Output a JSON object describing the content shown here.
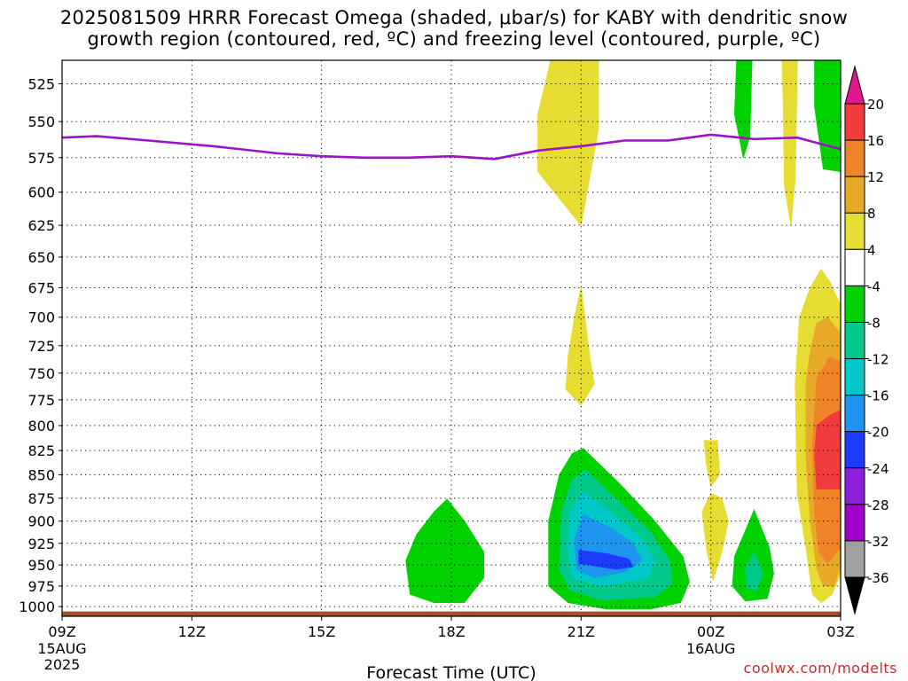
{
  "title": {
    "line1": "2025081509 HRRR Forecast Omega (shaded, μbar/s) for KABY with dendritic snow",
    "line2": "growth region (contoured, red, ºC) and freezing level (contoured, purple, ºC)"
  },
  "credit": "coolwx.com/modelts",
  "chart_data": {
    "type": "heatmap",
    "title": "2025081509 HRRR Forecast Omega (shaded, μbar/s) for KABY with dendritic snow growth region (contoured, red, ºC) and freezing level (contoured, purple, ºC)",
    "xlabel": "Forecast Time (UTC)",
    "ylabel": "",
    "x_ticks": [
      {
        "hour": 0,
        "label": "09Z",
        "sub1": "15AUG",
        "sub2": "2025"
      },
      {
        "hour": 3,
        "label": "12Z"
      },
      {
        "hour": 6,
        "label": "15Z"
      },
      {
        "hour": 9,
        "label": "18Z"
      },
      {
        "hour": 12,
        "label": "21Z"
      },
      {
        "hour": 15,
        "label": "00Z",
        "sub1": "16AUG"
      },
      {
        "hour": 18,
        "label": "03Z"
      }
    ],
    "xlim_hours": [
      0,
      18
    ],
    "y_scale": "log-pressure, inverted",
    "ylim_hPa": [
      1012,
      510
    ],
    "y_ticks_hPa": [
      525,
      550,
      575,
      600,
      625,
      650,
      675,
      700,
      725,
      750,
      775,
      800,
      825,
      850,
      875,
      900,
      925,
      950,
      975,
      1000
    ],
    "grid": "dotted",
    "colorbar": {
      "ticks": [
        20,
        16,
        12,
        8,
        4,
        -4,
        -8,
        -12,
        -16,
        -20,
        -24,
        -28,
        -32,
        -36
      ],
      "bins": [
        {
          "range": "above 20",
          "color": "#e0188c"
        },
        {
          "range": "16 to 20",
          "color": "#f03c3c"
        },
        {
          "range": "12 to 16",
          "color": "#ef8428"
        },
        {
          "range": "8 to 12",
          "color": "#e6aa28"
        },
        {
          "range": "4 to 8",
          "color": "#e6dc32"
        },
        {
          "range": "-4 to 4",
          "color": "#ffffff"
        },
        {
          "range": "-8 to -4",
          "color": "#00d200"
        },
        {
          "range": "-12 to -8",
          "color": "#00c98a"
        },
        {
          "range": "-16 to -12",
          "color": "#00c8c8"
        },
        {
          "range": "-20 to -16",
          "color": "#1e96f0"
        },
        {
          "range": "-24 to -20",
          "color": "#1e3cff"
        },
        {
          "range": "-28 to -24",
          "color": "#8c1edc"
        },
        {
          "range": "-32 to -28",
          "color": "#a000c8"
        },
        {
          "range": "-36 to -32",
          "color": "#a0a0a0"
        },
        {
          "range": "below -36",
          "color": "#000000"
        }
      ]
    },
    "freezing_level": {
      "color": "#9b12c8",
      "points": [
        [
          0,
          561
        ],
        [
          0.8,
          560
        ],
        [
          2,
          563
        ],
        [
          3.5,
          567
        ],
        [
          5,
          572
        ],
        [
          6,
          574
        ],
        [
          7,
          575
        ],
        [
          8,
          575
        ],
        [
          9,
          574
        ],
        [
          10,
          576
        ],
        [
          11,
          570
        ],
        [
          12,
          567
        ],
        [
          13,
          563
        ],
        [
          14,
          563
        ],
        [
          15,
          559
        ],
        [
          16,
          562
        ],
        [
          17,
          561
        ],
        [
          18,
          569
        ]
      ]
    },
    "ground": {
      "color": "#a0522d",
      "top_hPa": 1006
    },
    "omega_regions": [
      {
        "level": 4,
        "color": "#e6dc32",
        "points": [
          [
            11.3,
            510
          ],
          [
            12.4,
            510
          ],
          [
            12.4,
            555
          ],
          [
            12.0,
            625
          ],
          [
            11.0,
            585
          ],
          [
            11.0,
            545
          ]
        ]
      },
      {
        "level": -4,
        "color": "#00d200",
        "points": [
          [
            15.6,
            510
          ],
          [
            15.95,
            510
          ],
          [
            15.9,
            560
          ],
          [
            15.75,
            575
          ],
          [
            15.55,
            545
          ]
        ]
      },
      {
        "level": 4,
        "color": "#e6dc32",
        "points": [
          [
            16.65,
            510
          ],
          [
            17.0,
            510
          ],
          [
            16.95,
            590
          ],
          [
            16.85,
            625
          ],
          [
            16.7,
            595
          ],
          [
            16.68,
            545
          ]
        ]
      },
      {
        "level": -4,
        "color": "#00d200",
        "points": [
          [
            17.4,
            510
          ],
          [
            18.0,
            510
          ],
          [
            18.0,
            585
          ],
          [
            17.6,
            583
          ],
          [
            17.4,
            540
          ]
        ]
      },
      {
        "level": 4,
        "color": "#e6dc32",
        "points": [
          [
            12.0,
            675
          ],
          [
            12.2,
            735
          ],
          [
            12.3,
            760
          ],
          [
            12.0,
            780
          ],
          [
            11.65,
            765
          ],
          [
            11.7,
            735
          ],
          [
            11.85,
            700
          ]
        ]
      },
      {
        "level": 4,
        "color": "#e6dc32",
        "points": [
          [
            17.55,
            660
          ],
          [
            17.75,
            670
          ],
          [
            18.0,
            690
          ],
          [
            18.0,
            960
          ],
          [
            17.8,
            985
          ],
          [
            17.55,
            995
          ],
          [
            17.35,
            985
          ],
          [
            17.2,
            930
          ],
          [
            17.0,
            870
          ],
          [
            16.95,
            760
          ],
          [
            17.05,
            700
          ],
          [
            17.3,
            675
          ]
        ]
      },
      {
        "level": 8,
        "color": "#e6aa28",
        "points": [
          [
            17.7,
            700
          ],
          [
            18.0,
            715
          ],
          [
            18.0,
            950
          ],
          [
            17.85,
            975
          ],
          [
            17.6,
            975
          ],
          [
            17.45,
            955
          ],
          [
            17.3,
            900
          ],
          [
            17.2,
            830
          ],
          [
            17.2,
            760
          ],
          [
            17.3,
            730
          ],
          [
            17.45,
            705
          ]
        ]
      },
      {
        "level": 12,
        "color": "#ef8428",
        "points": [
          [
            17.75,
            735
          ],
          [
            18.0,
            740
          ],
          [
            18.0,
            930
          ],
          [
            17.7,
            948
          ],
          [
            17.5,
            935
          ],
          [
            17.4,
            890
          ],
          [
            17.35,
            820
          ],
          [
            17.45,
            755
          ]
        ]
      },
      {
        "level": 16,
        "color": "#f03c3c",
        "points": [
          [
            17.75,
            790
          ],
          [
            18.0,
            785
          ],
          [
            18.0,
            865
          ],
          [
            17.45,
            865
          ],
          [
            17.4,
            830
          ],
          [
            17.45,
            800
          ]
        ]
      },
      {
        "level": 4,
        "color": "#e6dc32",
        "points": [
          [
            14.85,
            815
          ],
          [
            15.15,
            815
          ],
          [
            15.2,
            850
          ],
          [
            15.0,
            862
          ],
          [
            14.9,
            840
          ]
        ]
      },
      {
        "level": 4,
        "color": "#e6dc32",
        "points": [
          [
            15.0,
            870
          ],
          [
            15.25,
            875
          ],
          [
            15.4,
            900
          ],
          [
            15.25,
            935
          ],
          [
            15.05,
            968
          ],
          [
            14.9,
            930
          ],
          [
            14.8,
            890
          ]
        ]
      },
      {
        "level": -4,
        "color": "#00d200",
        "points": [
          [
            8.9,
            876
          ],
          [
            9.3,
            900
          ],
          [
            9.75,
            935
          ],
          [
            9.75,
            965
          ],
          [
            9.3,
            995
          ],
          [
            8.6,
            995
          ],
          [
            8.05,
            985
          ],
          [
            7.95,
            945
          ],
          [
            8.2,
            915
          ],
          [
            8.6,
            890
          ]
        ]
      },
      {
        "level": -4,
        "color": "#00d200",
        "points": [
          [
            12.05,
            823
          ],
          [
            12.9,
            860
          ],
          [
            13.7,
            900
          ],
          [
            14.35,
            940
          ],
          [
            14.5,
            970
          ],
          [
            14.3,
            995
          ],
          [
            13.6,
            1003
          ],
          [
            12.6,
            1003
          ],
          [
            11.7,
            995
          ],
          [
            11.25,
            975
          ],
          [
            11.25,
            900
          ],
          [
            11.5,
            850
          ],
          [
            11.8,
            828
          ]
        ]
      },
      {
        "level": -8,
        "color": "#00c98a",
        "points": [
          [
            12.1,
            845
          ],
          [
            12.9,
            880
          ],
          [
            13.6,
            912
          ],
          [
            14.05,
            945
          ],
          [
            14.1,
            972
          ],
          [
            13.7,
            988
          ],
          [
            12.5,
            992
          ],
          [
            11.75,
            980
          ],
          [
            11.5,
            955
          ],
          [
            11.55,
            890
          ],
          [
            11.8,
            855
          ]
        ]
      },
      {
        "level": -12,
        "color": "#00c8c8",
        "points": [
          [
            12.05,
            868
          ],
          [
            12.8,
            895
          ],
          [
            13.4,
            920
          ],
          [
            13.7,
            945
          ],
          [
            13.55,
            965
          ],
          [
            12.5,
            975
          ],
          [
            11.8,
            965
          ],
          [
            11.7,
            930
          ],
          [
            11.75,
            890
          ]
        ]
      },
      {
        "level": -16,
        "color": "#1e96f0",
        "points": [
          [
            12.05,
            893
          ],
          [
            12.7,
            908
          ],
          [
            13.2,
            925
          ],
          [
            13.4,
            945
          ],
          [
            13.0,
            958
          ],
          [
            12.3,
            965
          ],
          [
            11.9,
            955
          ],
          [
            11.85,
            920
          ]
        ]
      },
      {
        "level": -20,
        "color": "#1e3cff",
        "points": [
          [
            11.95,
            933
          ],
          [
            12.6,
            937
          ],
          [
            13.1,
            943
          ],
          [
            13.2,
            952
          ],
          [
            12.8,
            955
          ],
          [
            11.95,
            948
          ]
        ]
      },
      {
        "level": -4,
        "color": "#00d200",
        "points": [
          [
            16.0,
            888
          ],
          [
            16.35,
            930
          ],
          [
            16.45,
            960
          ],
          [
            16.3,
            990
          ],
          [
            15.8,
            993
          ],
          [
            15.5,
            975
          ],
          [
            15.55,
            940
          ],
          [
            15.85,
            905
          ]
        ]
      },
      {
        "level": -8,
        "color": "#00c98a",
        "points": [
          [
            16.0,
            935
          ],
          [
            16.2,
            960
          ],
          [
            16.05,
            980
          ],
          [
            15.85,
            978
          ],
          [
            15.8,
            955
          ]
        ]
      }
    ]
  }
}
